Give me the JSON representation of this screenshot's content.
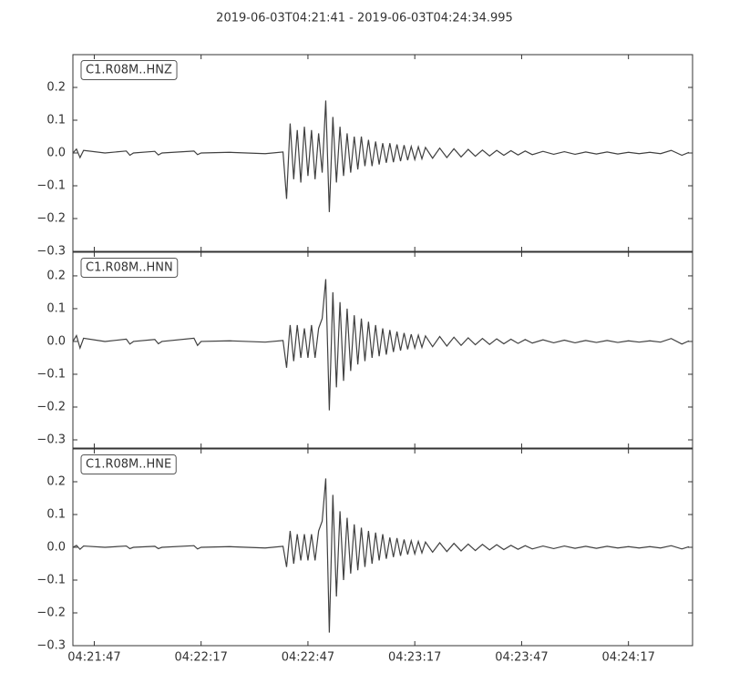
{
  "chart_data": [
    {
      "type": "line",
      "title": "2019-06-03T04:21:41  -  2019-06-03T04:24:34.995",
      "x": [
        15701,
        15702,
        15703,
        15704,
        15710,
        15716,
        15717,
        15718,
        15724,
        15725,
        15726,
        15735,
        15736,
        15737,
        15745,
        15755,
        15760,
        15761,
        15762,
        15763,
        15764,
        15765,
        15766,
        15767,
        15768,
        15769,
        15770,
        15771,
        15772,
        15773,
        15774,
        15775,
        15776,
        15777,
        15778,
        15779,
        15780,
        15781,
        15782,
        15783,
        15784,
        15785,
        15786,
        15787,
        15788,
        15789,
        15790,
        15791,
        15792,
        15793,
        15794,
        15795,
        15796,
        15797,
        15798,
        15799,
        15800,
        15802,
        15804,
        15806,
        15808,
        15810,
        15812,
        15814,
        15816,
        15818,
        15820,
        15822,
        15824,
        15826,
        15828,
        15830,
        15833,
        15836,
        15839,
        15842,
        15845,
        15848,
        15851,
        15854,
        15857,
        15860,
        15863,
        15866,
        15869,
        15872,
        15874
      ],
      "series": [
        {
          "name": "C1.R08M..HNZ",
          "color": "#404040",
          "values": [
            0.0,
            0.012,
            -0.014,
            0.008,
            0.0,
            0.006,
            -0.007,
            0.0,
            0.005,
            -0.006,
            0.0,
            0.006,
            -0.005,
            0.0,
            0.002,
            -0.002,
            0.003,
            -0.14,
            0.09,
            -0.08,
            0.07,
            -0.09,
            0.08,
            -0.07,
            0.07,
            -0.08,
            0.06,
            -0.06,
            0.16,
            -0.18,
            0.11,
            -0.09,
            0.08,
            -0.07,
            0.06,
            -0.06,
            0.05,
            -0.05,
            0.05,
            -0.04,
            0.04,
            -0.04,
            0.035,
            -0.035,
            0.03,
            -0.03,
            0.03,
            -0.028,
            0.026,
            -0.025,
            0.024,
            -0.022,
            0.02,
            -0.02,
            0.019,
            -0.018,
            0.017,
            -0.016,
            0.015,
            -0.014,
            0.013,
            -0.012,
            0.011,
            -0.01,
            0.009,
            -0.009,
            0.008,
            -0.007,
            0.007,
            -0.006,
            0.006,
            -0.005,
            0.005,
            -0.004,
            0.004,
            -0.004,
            0.003,
            -0.003,
            0.003,
            -0.003,
            0.002,
            -0.002,
            0.002,
            -0.002,
            0.008,
            -0.007,
            0.002
          ]
        }
      ],
      "xlim": [
        15701,
        15874.995
      ],
      "ylim": [
        -0.3,
        0.3
      ],
      "yticks": [
        {
          "value": -0.3,
          "label": "−0.3"
        },
        {
          "value": -0.2,
          "label": "−0.2"
        },
        {
          "value": -0.1,
          "label": "−0.1"
        },
        {
          "value": 0,
          "label": "0.0"
        },
        0.1,
        0.2
      ]
    },
    {
      "type": "line",
      "x": [
        15701,
        15702,
        15703,
        15704,
        15710,
        15716,
        15717,
        15718,
        15724,
        15725,
        15726,
        15735,
        15736,
        15737,
        15745,
        15755,
        15760,
        15761,
        15762,
        15763,
        15764,
        15765,
        15766,
        15767,
        15768,
        15769,
        15770,
        15771,
        15772,
        15773,
        15774,
        15775,
        15776,
        15777,
        15778,
        15779,
        15780,
        15781,
        15782,
        15783,
        15784,
        15785,
        15786,
        15787,
        15788,
        15789,
        15790,
        15791,
        15792,
        15793,
        15794,
        15795,
        15796,
        15797,
        15798,
        15799,
        15800,
        15802,
        15804,
        15806,
        15808,
        15810,
        15812,
        15814,
        15816,
        15818,
        15820,
        15822,
        15824,
        15826,
        15828,
        15830,
        15833,
        15836,
        15839,
        15842,
        15845,
        15848,
        15851,
        15854,
        15857,
        15860,
        15863,
        15866,
        15869,
        15872,
        15874
      ],
      "series": [
        {
          "name": "C1.R08M..HNN",
          "color": "#404040",
          "values": [
            0.0,
            0.018,
            -0.02,
            0.01,
            0.0,
            0.007,
            -0.008,
            0.0,
            0.006,
            -0.007,
            0.0,
            0.01,
            -0.012,
            0.0,
            0.002,
            -0.002,
            0.003,
            -0.08,
            0.05,
            -0.06,
            0.05,
            -0.05,
            0.04,
            -0.05,
            0.05,
            -0.05,
            0.04,
            0.07,
            0.19,
            -0.21,
            0.15,
            -0.14,
            0.12,
            -0.12,
            0.1,
            -0.09,
            0.08,
            -0.07,
            0.07,
            -0.06,
            0.06,
            -0.05,
            0.05,
            -0.045,
            0.04,
            -0.04,
            0.035,
            -0.032,
            0.03,
            -0.028,
            0.026,
            -0.024,
            0.022,
            -0.02,
            0.019,
            -0.018,
            0.017,
            -0.016,
            0.015,
            -0.014,
            0.013,
            -0.012,
            0.011,
            -0.01,
            0.009,
            -0.009,
            0.008,
            -0.007,
            0.007,
            -0.006,
            0.006,
            -0.005,
            0.005,
            -0.004,
            0.004,
            -0.004,
            0.003,
            -0.003,
            0.003,
            -0.003,
            0.002,
            -0.002,
            0.002,
            -0.002,
            0.009,
            -0.008,
            0.002
          ]
        }
      ],
      "xlim": [
        15701,
        15874.995
      ],
      "ylim": [
        -0.325,
        0.272
      ],
      "yticks": [
        {
          "value": -0.3,
          "label": "−0.3"
        },
        {
          "value": -0.2,
          "label": "−0.2"
        },
        {
          "value": -0.1,
          "label": "−0.1"
        },
        {
          "value": 0,
          "label": "0.0"
        },
        0.1,
        0.2
      ]
    },
    {
      "type": "line",
      "x": [
        15701,
        15702,
        15703,
        15704,
        15710,
        15716,
        15717,
        15718,
        15724,
        15725,
        15726,
        15735,
        15736,
        15737,
        15745,
        15755,
        15760,
        15761,
        15762,
        15763,
        15764,
        15765,
        15766,
        15767,
        15768,
        15769,
        15770,
        15771,
        15772,
        15773,
        15774,
        15775,
        15776,
        15777,
        15778,
        15779,
        15780,
        15781,
        15782,
        15783,
        15784,
        15785,
        15786,
        15787,
        15788,
        15789,
        15790,
        15791,
        15792,
        15793,
        15794,
        15795,
        15796,
        15797,
        15798,
        15799,
        15800,
        15802,
        15804,
        15806,
        15808,
        15810,
        15812,
        15814,
        15816,
        15818,
        15820,
        15822,
        15824,
        15826,
        15828,
        15830,
        15833,
        15836,
        15839,
        15842,
        15845,
        15848,
        15851,
        15854,
        15857,
        15860,
        15863,
        15866,
        15869,
        15872,
        15874
      ],
      "series": [
        {
          "name": "C1.R08M..HNE",
          "color": "#404040",
          "values": [
            0.0,
            0.006,
            -0.006,
            0.004,
            0.0,
            0.004,
            -0.004,
            0.0,
            0.003,
            -0.004,
            0.0,
            0.005,
            -0.005,
            0.0,
            0.002,
            -0.002,
            0.003,
            -0.06,
            0.05,
            -0.05,
            0.04,
            -0.04,
            0.04,
            -0.04,
            0.04,
            -0.04,
            0.05,
            0.08,
            0.21,
            -0.26,
            0.16,
            -0.15,
            0.11,
            -0.1,
            0.09,
            -0.08,
            0.07,
            -0.07,
            0.06,
            -0.06,
            0.05,
            -0.05,
            0.045,
            -0.04,
            0.04,
            -0.035,
            0.03,
            -0.03,
            0.028,
            -0.026,
            0.024,
            -0.022,
            0.02,
            -0.02,
            0.018,
            -0.017,
            0.016,
            -0.015,
            0.014,
            -0.013,
            0.012,
            -0.011,
            0.01,
            -0.01,
            0.009,
            -0.008,
            0.008,
            -0.007,
            0.006,
            -0.006,
            0.005,
            -0.005,
            0.004,
            -0.004,
            0.004,
            -0.003,
            0.003,
            -0.003,
            0.003,
            -0.002,
            0.002,
            -0.002,
            0.002,
            -0.002,
            0.005,
            -0.005,
            0.002
          ]
        }
      ],
      "xlim": [
        15701,
        15874.995
      ],
      "ylim": [
        -0.3,
        0.3
      ],
      "yticks": [
        {
          "value": -0.3,
          "label": "−0.3"
        },
        {
          "value": -0.2,
          "label": "−0.2"
        },
        {
          "value": -0.1,
          "label": "−0.1"
        },
        {
          "value": 0,
          "label": "0.0"
        },
        0.1,
        0.2
      ],
      "xticks": [
        {
          "value": 15707,
          "label": "04:21:47"
        },
        {
          "value": 15737,
          "label": "04:22:17"
        },
        {
          "value": 15767,
          "label": "04:22:47"
        },
        {
          "value": 15797,
          "label": "04:23:17"
        },
        {
          "value": 15827,
          "label": "04:23:47"
        },
        {
          "value": 15857,
          "label": "04:24:17"
        }
      ]
    }
  ]
}
